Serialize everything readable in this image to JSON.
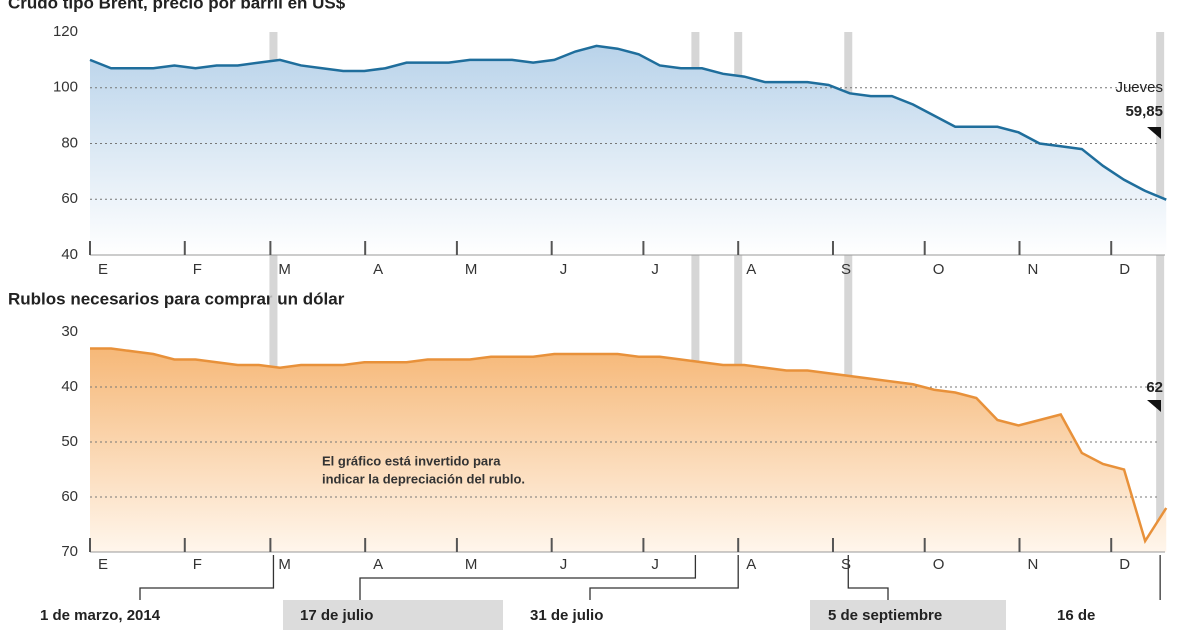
{
  "chart_data": [
    {
      "type": "line",
      "title": "Crudo tipo Brent, precio por barril en US$",
      "color": "#1f6e9c",
      "months": [
        "E",
        "F",
        "M",
        "A",
        "M",
        "J",
        "J",
        "A",
        "S",
        "O",
        "N",
        "D"
      ],
      "values": [
        110,
        107,
        107,
        107,
        108,
        107,
        108,
        108,
        109,
        110,
        108,
        107,
        106,
        106,
        107,
        109,
        109,
        109,
        110,
        110,
        110,
        109,
        110,
        113,
        115,
        114,
        112,
        108,
        107,
        107,
        105,
        104,
        102,
        102,
        102,
        101,
        98,
        97,
        97,
        94,
        90,
        86,
        86,
        86,
        84,
        80,
        79,
        78,
        72,
        67,
        63,
        59.85
      ],
      "value_labels": [
        null,
        null,
        null,
        null,
        null,
        null,
        null,
        null,
        null,
        null,
        null,
        null,
        null,
        null,
        null,
        null,
        null,
        null,
        null,
        null,
        null,
        null,
        null,
        null,
        null,
        null,
        null,
        null,
        null,
        null,
        null,
        null,
        null,
        null,
        null,
        null,
        null,
        null,
        null,
        null,
        null,
        null,
        null,
        null,
        null,
        null,
        null,
        null,
        null,
        null,
        null,
        "59,85"
      ],
      "annotation": "Jueves",
      "ylim": [
        40,
        120
      ],
      "yticks": [
        40,
        60,
        80,
        100,
        120
      ],
      "grid": true
    },
    {
      "type": "line",
      "title": "Rublos necesarios para comprar un dólar",
      "color": "#e8913a",
      "months": [
        "E",
        "F",
        "M",
        "A",
        "M",
        "J",
        "J",
        "A",
        "S",
        "O",
        "N",
        "D"
      ],
      "values": [
        33,
        33,
        33.5,
        34,
        35,
        35,
        35.5,
        36,
        36,
        36.5,
        36,
        36,
        36,
        35.5,
        35.5,
        35.5,
        35,
        35,
        35,
        34.5,
        34.5,
        34.5,
        34,
        34,
        34,
        34,
        34.5,
        34.5,
        35,
        35.5,
        36,
        36,
        36.5,
        37,
        37,
        37.5,
        38,
        38.5,
        39,
        39.5,
        40.5,
        41,
        42,
        46,
        47,
        46,
        45,
        52,
        54,
        55,
        68,
        62
      ],
      "annotation": [
        "El gráfico está invertido para",
        "indicar la depreciación del rublo."
      ],
      "ylim": [
        70,
        30
      ],
      "yticks": [
        30,
        40,
        50,
        60,
        70
      ],
      "grid": true
    }
  ],
  "events": [
    "1 de marzo, 2014",
    "17 de julio",
    "31 de julio",
    "5 de septiembre",
    "16 de"
  ]
}
